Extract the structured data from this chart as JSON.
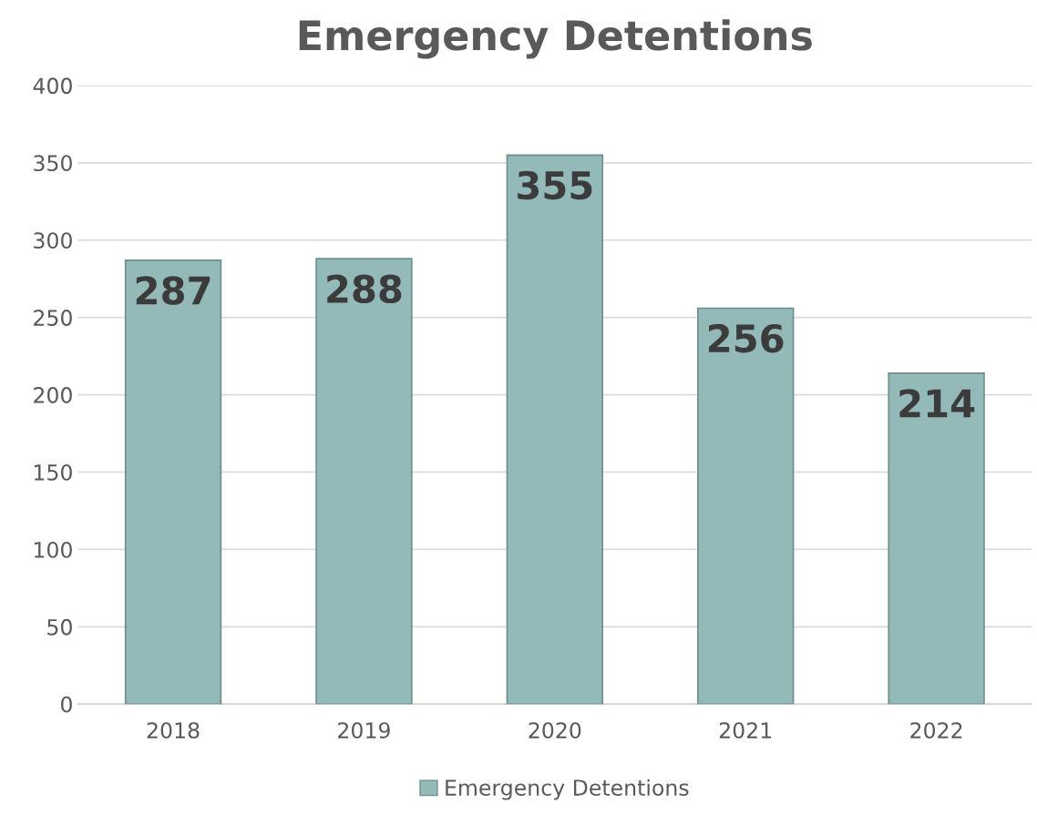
{
  "chart_data": {
    "type": "bar",
    "title": "Emergency Detentions",
    "categories": [
      "2018",
      "2019",
      "2020",
      "2021",
      "2022"
    ],
    "series": [
      {
        "name": "Emergency Detentions",
        "color": "#93b9b8",
        "values": [
          287,
          288,
          355,
          256,
          214
        ]
      }
    ],
    "ylim": [
      0,
      400
    ],
    "yticks": [
      0,
      50,
      100,
      150,
      200,
      250,
      300,
      350,
      400
    ],
    "grid": "y",
    "legend": "bottom",
    "data_labels": true
  }
}
